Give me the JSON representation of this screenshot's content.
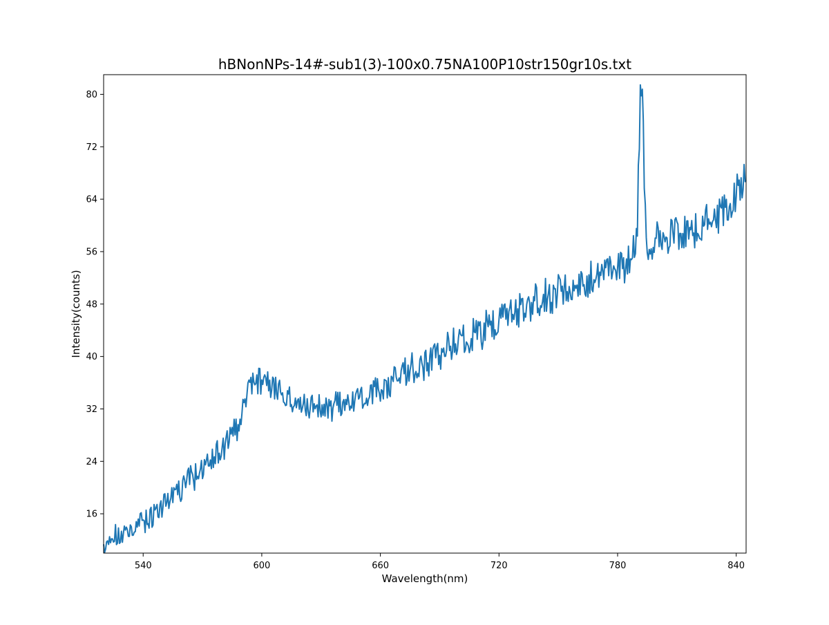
{
  "chart_data": {
    "type": "line",
    "title": "hBNonNPs-14#-sub1(3)-100x0.75NA100P10str150gr10s.txt",
    "xlabel": "Wavelength(nm)",
    "ylabel": "Intensity(counts)",
    "xlim": [
      520,
      845
    ],
    "ylim": [
      10,
      83
    ],
    "xticks": [
      540,
      600,
      660,
      720,
      780,
      840
    ],
    "yticks": [
      16,
      24,
      32,
      40,
      48,
      56,
      64,
      72,
      80
    ],
    "grid": false,
    "legend": "none",
    "series_color": "#1f77b4",
    "anchors": [
      [
        520,
        10.5
      ],
      [
        523,
        12.0
      ],
      [
        530,
        12.7
      ],
      [
        535,
        13.3
      ],
      [
        540,
        14.6
      ],
      [
        545,
        16.0
      ],
      [
        550,
        17.4
      ],
      [
        555,
        18.6
      ],
      [
        560,
        20.1
      ],
      [
        565,
        21.6
      ],
      [
        570,
        23.0
      ],
      [
        575,
        24.3
      ],
      [
        580,
        26.1
      ],
      [
        585,
        28.0
      ],
      [
        590,
        31.0
      ],
      [
        595,
        36.0
      ],
      [
        600,
        36.5
      ],
      [
        605,
        35.5
      ],
      [
        610,
        34.3
      ],
      [
        615,
        33.4
      ],
      [
        620,
        32.8
      ],
      [
        625,
        32.5
      ],
      [
        630,
        32.3
      ],
      [
        635,
        32.3
      ],
      [
        640,
        32.5
      ],
      [
        645,
        33.0
      ],
      [
        650,
        33.7
      ],
      [
        655,
        34.4
      ],
      [
        660,
        35.0
      ],
      [
        665,
        35.9
      ],
      [
        670,
        36.8
      ],
      [
        675,
        37.7
      ],
      [
        680,
        38.6
      ],
      [
        685,
        39.5
      ],
      [
        690,
        40.4
      ],
      [
        695,
        41.2
      ],
      [
        700,
        42.0
      ],
      [
        705,
        42.9
      ],
      [
        710,
        43.8
      ],
      [
        715,
        44.6
      ],
      [
        720,
        45.4
      ],
      [
        725,
        46.2
      ],
      [
        730,
        47.0
      ],
      [
        735,
        47.8
      ],
      [
        740,
        48.6
      ],
      [
        745,
        49.3
      ],
      [
        750,
        50.0
      ],
      [
        755,
        50.6
      ],
      [
        760,
        51.2
      ],
      [
        765,
        51.8
      ],
      [
        770,
        52.3
      ],
      [
        775,
        53.0
      ],
      [
        780,
        53.6
      ],
      [
        785,
        54.4
      ],
      [
        790,
        55.8
      ],
      [
        795,
        56.8
      ],
      [
        800,
        57.3
      ],
      [
        805,
        57.8
      ],
      [
        810,
        58.3
      ],
      [
        815,
        58.8
      ],
      [
        820,
        59.3
      ],
      [
        825,
        60.1
      ],
      [
        830,
        61.0
      ],
      [
        835,
        62.6
      ],
      [
        840,
        64.5
      ],
      [
        845,
        67.5
      ]
    ],
    "peak": {
      "x": 792,
      "y": 83
    },
    "noise": 1.2
  }
}
